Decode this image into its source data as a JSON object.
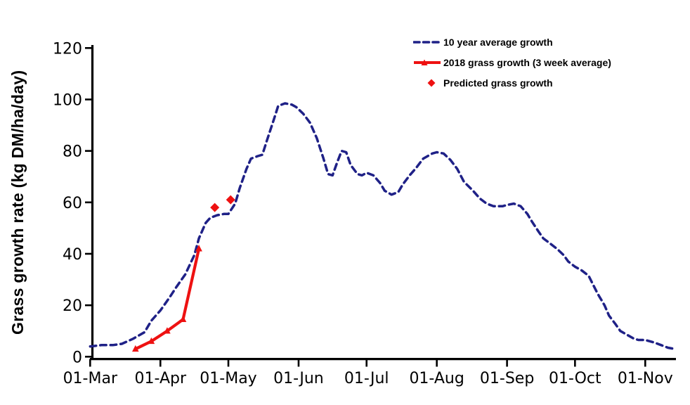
{
  "chart_data": {
    "type": "line",
    "title": "",
    "xlabel": "",
    "ylabel": "Grass growth rate (kg DM/ha/day)",
    "ylim": [
      0,
      120
    ],
    "yticks": [
      0,
      20,
      40,
      60,
      80,
      100,
      120
    ],
    "grid": false,
    "background": "#ffffff",
    "legend_position": "top-right",
    "x_axis": {
      "day_zero_date": "01-Mar",
      "tick_labels": [
        "01-Mar",
        "01-Apr",
        "01-May",
        "01-Jun",
        "01-Jul",
        "01-Aug",
        "01-Sep",
        "01-Oct",
        "01-Nov"
      ],
      "tick_days": [
        0,
        31,
        61,
        92,
        122,
        153,
        184,
        214,
        245
      ],
      "domain_days": [
        0,
        258
      ]
    },
    "series": [
      {
        "name": "10 year average growth",
        "type": "line",
        "line_style": "dashed",
        "marker": "none",
        "color": "#1f2187",
        "points_day_value": [
          [
            0,
            4
          ],
          [
            5,
            4.5
          ],
          [
            10,
            4.5
          ],
          [
            14,
            5
          ],
          [
            19,
            7
          ],
          [
            24,
            9.5
          ],
          [
            27,
            14
          ],
          [
            31,
            18
          ],
          [
            35,
            23
          ],
          [
            38,
            27
          ],
          [
            42,
            32
          ],
          [
            46,
            39.5
          ],
          [
            48,
            46
          ],
          [
            51,
            52
          ],
          [
            53,
            54
          ],
          [
            56,
            55
          ],
          [
            59,
            55.5
          ],
          [
            61,
            55.5
          ],
          [
            64,
            59.5
          ],
          [
            66,
            65.5
          ],
          [
            69,
            73
          ],
          [
            71,
            77
          ],
          [
            74,
            78
          ],
          [
            76,
            78.5
          ],
          [
            78,
            84
          ],
          [
            81,
            92
          ],
          [
            83,
            97.5
          ],
          [
            86,
            98.5
          ],
          [
            89,
            98
          ],
          [
            91,
            97
          ],
          [
            94,
            94.5
          ],
          [
            97,
            91
          ],
          [
            100,
            85
          ],
          [
            103,
            77
          ],
          [
            105,
            71
          ],
          [
            107,
            70.5
          ],
          [
            109,
            75.5
          ],
          [
            111,
            80
          ],
          [
            113,
            79.5
          ],
          [
            115,
            74.5
          ],
          [
            118,
            71
          ],
          [
            120,
            70.5
          ],
          [
            122,
            71.5
          ],
          [
            125,
            70.5
          ],
          [
            128,
            67.5
          ],
          [
            130,
            64.5
          ],
          [
            133,
            63
          ],
          [
            136,
            64
          ],
          [
            138,
            67
          ],
          [
            141,
            70.5
          ],
          [
            144,
            73.5
          ],
          [
            147,
            77
          ],
          [
            151,
            79
          ],
          [
            153,
            79.5
          ],
          [
            156,
            79
          ],
          [
            159,
            76.5
          ],
          [
            162,
            73
          ],
          [
            165,
            68
          ],
          [
            169,
            64.5
          ],
          [
            172,
            61.5
          ],
          [
            175,
            59.5
          ],
          [
            178,
            58.5
          ],
          [
            182,
            58.5
          ],
          [
            184,
            59
          ],
          [
            187,
            59.5
          ],
          [
            190,
            58.5
          ],
          [
            193,
            55.5
          ],
          [
            195,
            52.5
          ],
          [
            198,
            48.5
          ],
          [
            200,
            46
          ],
          [
            203,
            44
          ],
          [
            206,
            42
          ],
          [
            209,
            39.5
          ],
          [
            211,
            37
          ],
          [
            214,
            35
          ],
          [
            217,
            33.5
          ],
          [
            220,
            31.5
          ],
          [
            222,
            28
          ],
          [
            224,
            24.5
          ],
          [
            227,
            20
          ],
          [
            229,
            16
          ],
          [
            232,
            12.5
          ],
          [
            234,
            10
          ],
          [
            237,
            8.5
          ],
          [
            240,
            7
          ],
          [
            242,
            6.5
          ],
          [
            245,
            6.5
          ],
          [
            249,
            5.5
          ],
          [
            252,
            4.5
          ],
          [
            255,
            3.5
          ],
          [
            258,
            3
          ]
        ]
      },
      {
        "name": "2018 grass growth (3 week average)",
        "type": "line",
        "line_style": "solid",
        "marker": "triangle",
        "color": "#ee1111",
        "points": [
          {
            "date": "21-Mar",
            "day": 20,
            "value": 3
          },
          {
            "date": "28-Mar",
            "day": 27,
            "value": 6
          },
          {
            "date": "04-Apr",
            "day": 34,
            "value": 10
          },
          {
            "date": "11-Apr",
            "day": 41,
            "value": 14.5
          },
          {
            "date": "18-Apr",
            "day": 48,
            "value": 42
          }
        ]
      },
      {
        "name": "Predicted grass growth",
        "type": "scatter",
        "marker": "diamond",
        "color": "#ee1111",
        "points": [
          {
            "date": "25-Apr",
            "day": 55,
            "value": 58
          },
          {
            "date": "02-May",
            "day": 62,
            "value": 61
          }
        ]
      }
    ]
  }
}
